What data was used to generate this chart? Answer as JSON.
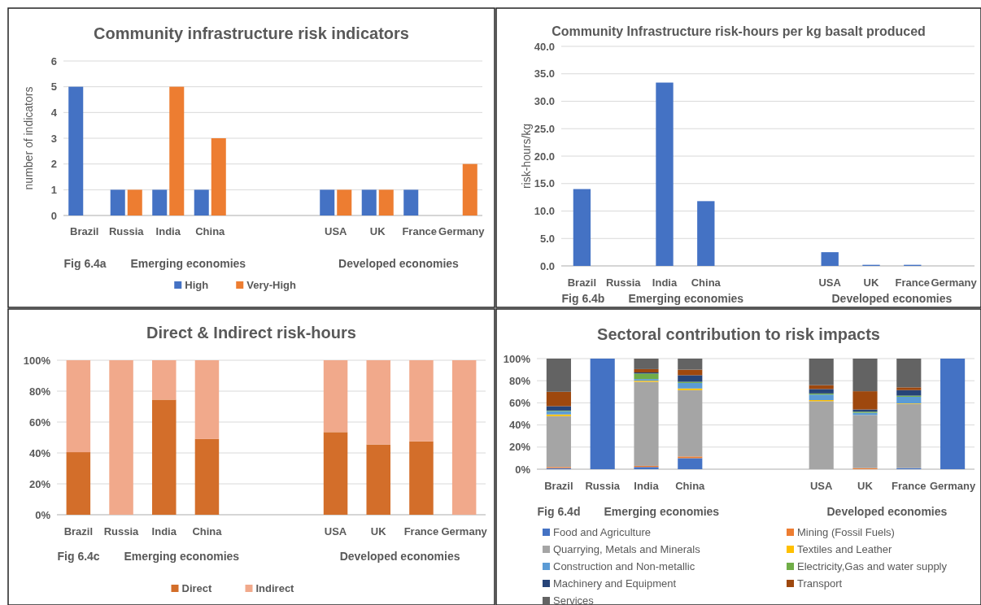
{
  "chart_data": [
    {
      "type": "bar",
      "title": "Community infrastructure risk indicators",
      "ylabel": "number of indicators",
      "categories": [
        "Brazil",
        "Russia",
        "India",
        "China",
        null,
        null,
        "USA",
        "UK",
        "France",
        "Germany"
      ],
      "series": [
        {
          "name": "High",
          "color": "#4472c4",
          "values": [
            5,
            1,
            1,
            1,
            null,
            null,
            1,
            1,
            1,
            0
          ]
        },
        {
          "name": "Very-High",
          "color": "#ed7d31",
          "values": [
            0,
            1,
            5,
            3,
            null,
            null,
            1,
            1,
            0,
            2
          ]
        }
      ],
      "ylim": [
        0,
        6
      ],
      "yticks": [
        0,
        1,
        2,
        3,
        4,
        5,
        6
      ],
      "grid": "y",
      "legend": "bottom",
      "annotations": [
        "Fig 6.4a",
        "Emerging economies",
        "Developed economies"
      ]
    },
    {
      "type": "bar",
      "title": "Community Infrastructure risk-hours per kg basalt produced",
      "ylabel": "risk-hours/kg",
      "categories": [
        "Brazil",
        "Russia",
        "India",
        "China",
        null,
        null,
        "USA",
        "UK",
        "France",
        "Germany"
      ],
      "series": [
        {
          "color": "#4472c4",
          "values": [
            14.0,
            0,
            33.4,
            11.8,
            null,
            null,
            2.5,
            0.2,
            0.2,
            0
          ]
        }
      ],
      "ylim": [
        0,
        40
      ],
      "yticks": [
        {
          "value": 0,
          "label": "0.0"
        },
        {
          "value": 5,
          "label": "5.0"
        },
        {
          "value": 10,
          "label": "10.0"
        },
        {
          "value": 15,
          "label": "15.0"
        },
        {
          "value": 20,
          "label": "20.0"
        },
        {
          "value": 25,
          "label": "25.0"
        },
        {
          "value": 30,
          "label": "30.0"
        },
        {
          "value": 35,
          "label": "35.0"
        },
        {
          "value": 40,
          "label": "40.0"
        }
      ],
      "grid": "y",
      "annotations": [
        "Fig 6.4b",
        "Emerging economies",
        "Developed economies"
      ]
    },
    {
      "type": "bar",
      "stacked": true,
      "title": "Direct & Indirect risk-hours",
      "categories": [
        "Brazil",
        "Russia",
        "India",
        "China",
        null,
        null,
        "USA",
        "UK",
        "France",
        "Germany"
      ],
      "series": [
        {
          "name": "Direct",
          "color": "#d36e2a",
          "values": [
            40.5,
            0,
            74.5,
            49,
            null,
            null,
            53.5,
            45.5,
            47.5,
            0
          ]
        },
        {
          "name": "Indirect",
          "color": "#f1a98b",
          "values": [
            59.5,
            100,
            25.5,
            51,
            null,
            null,
            46.5,
            54.5,
            52.5,
            100
          ]
        }
      ],
      "ylim": [
        0,
        100
      ],
      "yticks": [
        {
          "value": 0,
          "label": "0%"
        },
        {
          "value": 20,
          "label": "20%"
        },
        {
          "value": 40,
          "label": "40%"
        },
        {
          "value": 60,
          "label": "60%"
        },
        {
          "value": 80,
          "label": "80%"
        },
        {
          "value": 100,
          "label": "100%"
        }
      ],
      "grid": "y",
      "legend": "bottom",
      "annotations": [
        "Fig 6.4c",
        "Emerging economies",
        "Developed economies"
      ]
    },
    {
      "type": "bar",
      "stacked": true,
      "title": "Sectoral contribution to risk impacts",
      "categories": [
        "Brazil",
        "Russia",
        "India",
        "China",
        null,
        null,
        "USA",
        "UK",
        "France",
        "Germany"
      ],
      "series": [
        {
          "name": "Food and Agriculture",
          "color": "#4472c4",
          "values": [
            1,
            100,
            2,
            10,
            null,
            null,
            0,
            0,
            1,
            100
          ]
        },
        {
          "name": "Mining (Fossil Fuels)",
          "color": "#ed7d31",
          "values": [
            1,
            0,
            1,
            1.5,
            null,
            null,
            0,
            1,
            0,
            0
          ]
        },
        {
          "name": "Quarrying, Metals and Minerals",
          "color": "#a5a5a5",
          "values": [
            46,
            0,
            76,
            60,
            null,
            null,
            61.5,
            48,
            58,
            0
          ]
        },
        {
          "name": "Textiles and Leather",
          "color": "#ffc000",
          "values": [
            1.5,
            0,
            1,
            1.5,
            null,
            null,
            1,
            null,
            0.5,
            0
          ]
        },
        {
          "name": "Construction and Non-metallic",
          "color": "#5b9bd5",
          "values": [
            3,
            0,
            1.5,
            5,
            null,
            null,
            5,
            2,
            6,
            0
          ]
        },
        {
          "name": "Electricity,Gas and water supply",
          "color": "#70ad47",
          "values": [
            0.5,
            0,
            5,
            1,
            null,
            null,
            1,
            1,
            1,
            0
          ]
        },
        {
          "name": "Machinery and Equipment",
          "color": "#264478",
          "values": [
            4,
            0,
            1,
            6,
            null,
            null,
            4,
            2,
            5,
            0
          ]
        },
        {
          "name": "Transport",
          "color": "#9e480e",
          "values": [
            13,
            0,
            3,
            5,
            null,
            null,
            3.5,
            16.5,
            2.5,
            0
          ]
        },
        {
          "name": "Services",
          "color": "#636363",
          "values": [
            30,
            0,
            9.5,
            10,
            null,
            null,
            24,
            29.5,
            26,
            0
          ]
        }
      ],
      "ylim": [
        0,
        100
      ],
      "yticks": [
        {
          "value": 0,
          "label": "0%"
        },
        {
          "value": 20,
          "label": "20%"
        },
        {
          "value": 40,
          "label": "40%"
        },
        {
          "value": 60,
          "label": "60%"
        },
        {
          "value": 80,
          "label": "80%"
        },
        {
          "value": 100,
          "label": "100%"
        }
      ],
      "grid": "y",
      "legend": "bottom",
      "annotations": [
        "Fig 6.4d",
        "Emerging economies",
        "Developed economies"
      ]
    }
  ]
}
